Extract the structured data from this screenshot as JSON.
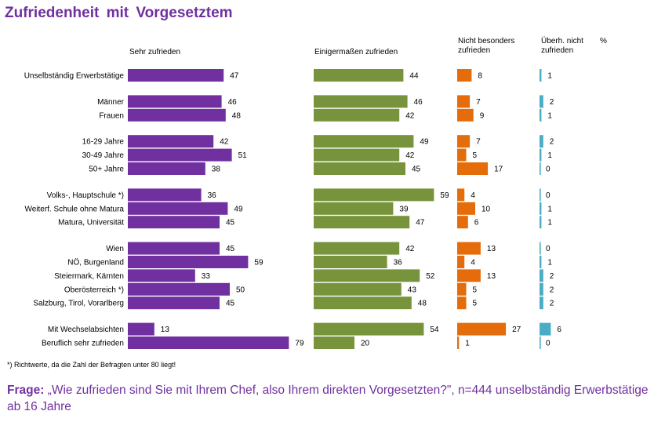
{
  "chart_data": {
    "type": "bar",
    "title": "Zufriedenheit  mit  Vorgesetztem",
    "unit_label": "%",
    "groups": [
      [
        "Unselbständig Erwerbstätige"
      ],
      [
        "Männer",
        "Frauen"
      ],
      [
        "16-29 Jahre",
        "30-49 Jahre",
        "50+ Jahre"
      ],
      [
        "Volks-, Hauptschule *)",
        "Weiterf. Schule ohne Matura",
        "Matura, Universität"
      ],
      [
        "Wien",
        "NÖ, Burgenland",
        "Steiermark, Kärnten",
        "Oberösterreich *)",
        "Salzburg, Tirol, Vorarlberg"
      ],
      [
        "Mit Wechselabsichten",
        "Beruflich sehr zufrieden"
      ]
    ],
    "categories": [
      "Unselbständig Erwerbstätige",
      "Männer",
      "Frauen",
      "16-29 Jahre",
      "30-49 Jahre",
      "50+ Jahre",
      "Volks-, Hauptschule *)",
      "Weiterf. Schule ohne Matura",
      "Matura, Universität",
      "Wien",
      "NÖ, Burgenland",
      "Steiermark, Kärnten",
      "Oberösterreich *)",
      "Salzburg, Tirol, Vorarlberg",
      "Mit Wechselabsichten",
      "Beruflich sehr zufrieden"
    ],
    "series": [
      {
        "name": "Sehr zufrieden",
        "color": "#7030A0",
        "values": [
          47,
          46,
          48,
          42,
          51,
          38,
          36,
          49,
          45,
          45,
          59,
          33,
          50,
          45,
          13,
          79
        ]
      },
      {
        "name": "Einigermaßen zufrieden",
        "color": "#77933C",
        "values": [
          44,
          46,
          42,
          49,
          42,
          45,
          59,
          39,
          47,
          42,
          36,
          52,
          43,
          48,
          54,
          20
        ]
      },
      {
        "name": "Nicht besonders zufrieden",
        "color": "#E46C0A",
        "values": [
          8,
          7,
          9,
          7,
          5,
          17,
          4,
          10,
          6,
          13,
          4,
          13,
          5,
          5,
          27,
          1
        ]
      },
      {
        "name": "Überh. nicht zufrieden",
        "color": "#4BACC6",
        "values": [
          1,
          2,
          1,
          2,
          1,
          0,
          0,
          1,
          1,
          0,
          1,
          2,
          2,
          2,
          6,
          0
        ]
      }
    ]
  },
  "headers": {
    "s1": "Sehr zufrieden",
    "s2": "Einigermaßen zufrieden",
    "s3_line1": "Nicht besonders",
    "s3_line2": "zufrieden",
    "s4_line1": "Überh. nicht",
    "s4_line2": "zufrieden",
    "unit": "%"
  },
  "footnote": "*) Richtwerte, da die Zahl der Befragten unter 80 liegt!",
  "question": {
    "label": "Frage:",
    "text": " „Wie zufrieden sind Sie mit Ihrem Chef, also Ihrem direkten Vorgesetzten?\", n=444 unselbständig Erwerbstätige ab 16 Jahre"
  }
}
